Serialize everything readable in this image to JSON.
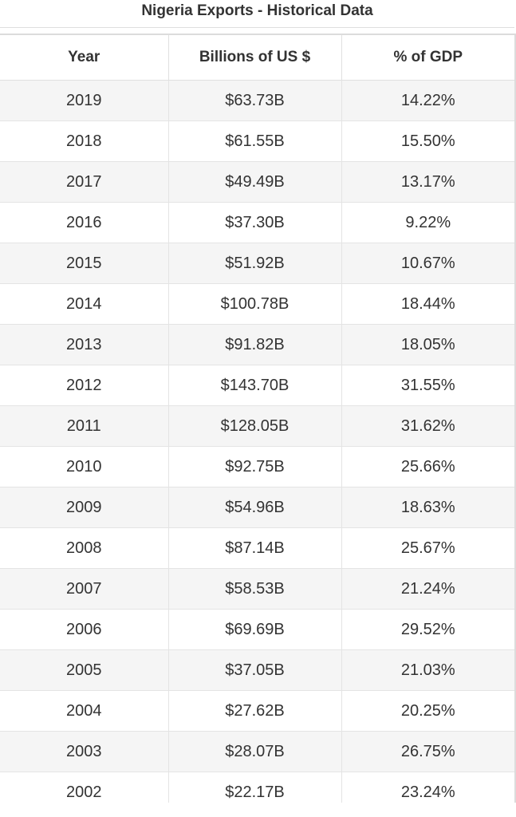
{
  "title": "Nigeria Exports - Historical Data",
  "table": {
    "headers": [
      "Year",
      "Billions of US $",
      "% of GDP"
    ],
    "rows": [
      [
        "2019",
        "$63.73B",
        "14.22%"
      ],
      [
        "2018",
        "$61.55B",
        "15.50%"
      ],
      [
        "2017",
        "$49.49B",
        "13.17%"
      ],
      [
        "2016",
        "$37.30B",
        "9.22%"
      ],
      [
        "2015",
        "$51.92B",
        "10.67%"
      ],
      [
        "2014",
        "$100.78B",
        "18.44%"
      ],
      [
        "2013",
        "$91.82B",
        "18.05%"
      ],
      [
        "2012",
        "$143.70B",
        "31.55%"
      ],
      [
        "2011",
        "$128.05B",
        "31.62%"
      ],
      [
        "2010",
        "$92.75B",
        "25.66%"
      ],
      [
        "2009",
        "$54.96B",
        "18.63%"
      ],
      [
        "2008",
        "$87.14B",
        "25.67%"
      ],
      [
        "2007",
        "$58.53B",
        "21.24%"
      ],
      [
        "2006",
        "$69.69B",
        "29.52%"
      ],
      [
        "2005",
        "$37.05B",
        "21.03%"
      ],
      [
        "2004",
        "$27.62B",
        "20.25%"
      ],
      [
        "2003",
        "$28.07B",
        "26.75%"
      ],
      [
        "2002",
        "$22.17B",
        "23.24%"
      ]
    ]
  },
  "colors": {
    "stripe": "#f5f5f5",
    "background": "#ffffff",
    "text": "#333333",
    "grid": "#e4e4e4"
  }
}
